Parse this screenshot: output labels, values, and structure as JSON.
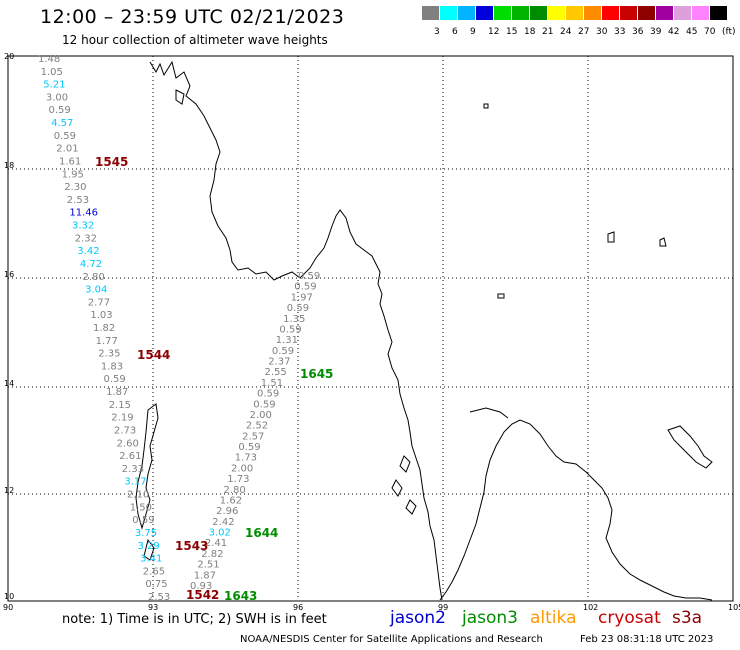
{
  "title": "12:00 – 23:59 UTC 02/21/2023",
  "subtitle": "12 hour collection of altimeter wave heights",
  "colorbar": {
    "labels": [
      "3",
      "6",
      "9",
      "12",
      "15",
      "18",
      "21",
      "24",
      "27",
      "30",
      "33",
      "36",
      "39",
      "42",
      "45",
      "70",
      "(ft)"
    ],
    "colors": [
      "#808080",
      "#00ffff",
      "#00b4ff",
      "#0000dd",
      "#00dd00",
      "#00b400",
      "#008c00",
      "#ffff00",
      "#ffc800",
      "#ff8c00",
      "#ff0000",
      "#c80000",
      "#8c0000",
      "#a000a0",
      "#dda0dd",
      "#ff82ff",
      "#000000"
    ]
  },
  "lat_labels": [
    "20",
    "18",
    "16",
    "14",
    "12",
    "10"
  ],
  "lon_labels": [
    "90",
    "93",
    "96",
    "99",
    "102",
    "105"
  ],
  "tracks": {
    "t1545": {
      "color": "#808080",
      "points": [
        {
          "v": "1.48",
          "c": "#808080"
        },
        {
          "v": "1.05",
          "c": "#808080"
        },
        {
          "v": "5.21",
          "c": "#00c8ff"
        },
        {
          "v": "3.00",
          "c": "#808080"
        },
        {
          "v": "0.59",
          "c": "#808080"
        },
        {
          "v": "4.57",
          "c": "#00c8ff"
        },
        {
          "v": "0.59",
          "c": "#808080"
        },
        {
          "v": "2.01",
          "c": "#808080"
        },
        {
          "v": "1.61",
          "c": "#808080"
        },
        {
          "v": "1.95",
          "c": "#808080"
        },
        {
          "v": "2.30",
          "c": "#808080"
        },
        {
          "v": "2.53",
          "c": "#808080"
        },
        {
          "v": "11.46",
          "c": "#0000cc"
        },
        {
          "v": "3.32",
          "c": "#00c8ff"
        },
        {
          "v": "2.32",
          "c": "#808080"
        },
        {
          "v": "3.42",
          "c": "#00c8ff"
        },
        {
          "v": "4.72",
          "c": "#00c8ff"
        },
        {
          "v": "2.80",
          "c": "#808080"
        },
        {
          "v": "3.04",
          "c": "#00c8ff"
        },
        {
          "v": "2.77",
          "c": "#808080"
        },
        {
          "v": "1.03",
          "c": "#808080"
        },
        {
          "v": "1.82",
          "c": "#808080"
        },
        {
          "v": "1.77",
          "c": "#808080"
        },
        {
          "v": "2.35",
          "c": "#808080"
        },
        {
          "v": "1.83",
          "c": "#808080"
        },
        {
          "v": "0.59",
          "c": "#808080"
        },
        {
          "v": "1.87",
          "c": "#808080"
        },
        {
          "v": "2.15",
          "c": "#808080"
        },
        {
          "v": "2.19",
          "c": "#808080"
        },
        {
          "v": "2.73",
          "c": "#808080"
        },
        {
          "v": "2.60",
          "c": "#808080"
        },
        {
          "v": "2.61",
          "c": "#808080"
        },
        {
          "v": "2.33",
          "c": "#808080"
        },
        {
          "v": "3.17",
          "c": "#00c8ff"
        },
        {
          "v": "2.10",
          "c": "#808080"
        },
        {
          "v": "1.50",
          "c": "#808080"
        },
        {
          "v": "0.59",
          "c": "#808080"
        },
        {
          "v": "3.75",
          "c": "#00c8ff"
        },
        {
          "v": "3.29",
          "c": "#00c8ff"
        },
        {
          "v": "3.41",
          "c": "#00c8ff"
        },
        {
          "v": "2.65",
          "c": "#808080"
        },
        {
          "v": "0.75",
          "c": "#808080"
        },
        {
          "v": "2.53",
          "c": "#808080"
        }
      ]
    },
    "t1645": {
      "points": [
        {
          "v": "0.59",
          "c": "#808080"
        },
        {
          "v": "0.59",
          "c": "#808080"
        },
        {
          "v": "1.97",
          "c": "#808080"
        },
        {
          "v": "0.59",
          "c": "#808080"
        },
        {
          "v": "1.35",
          "c": "#808080"
        },
        {
          "v": "0.59",
          "c": "#808080"
        },
        {
          "v": "1.31",
          "c": "#808080"
        },
        {
          "v": "0.59",
          "c": "#808080"
        },
        {
          "v": "2.37",
          "c": "#808080"
        },
        {
          "v": "2.55",
          "c": "#808080"
        },
        {
          "v": "1.51",
          "c": "#808080"
        },
        {
          "v": "0.59",
          "c": "#808080"
        },
        {
          "v": "0.59",
          "c": "#808080"
        },
        {
          "v": "2.00",
          "c": "#808080"
        },
        {
          "v": "2.52",
          "c": "#808080"
        },
        {
          "v": "2.57",
          "c": "#808080"
        },
        {
          "v": "0.59",
          "c": "#808080"
        },
        {
          "v": "1.73",
          "c": "#808080"
        },
        {
          "v": "2.00",
          "c": "#808080"
        },
        {
          "v": "1.73",
          "c": "#808080"
        },
        {
          "v": "2.80",
          "c": "#808080"
        },
        {
          "v": "1.62",
          "c": "#808080"
        },
        {
          "v": "2.96",
          "c": "#808080"
        },
        {
          "v": "2.42",
          "c": "#808080"
        },
        {
          "v": "3.02",
          "c": "#00c8ff"
        },
        {
          "v": "2.41",
          "c": "#808080"
        },
        {
          "v": "2.82",
          "c": "#808080"
        },
        {
          "v": "2.51",
          "c": "#808080"
        },
        {
          "v": "1.87",
          "c": "#808080"
        },
        {
          "v": "0.93",
          "c": "#808080"
        }
      ]
    }
  },
  "pass_labels": [
    {
      "text": "1545",
      "color": "#8b0000"
    },
    {
      "text": "1544",
      "color": "#8b0000"
    },
    {
      "text": "1645",
      "color": "#008c00"
    },
    {
      "text": "1644",
      "color": "#008c00"
    },
    {
      "text": "1543",
      "color": "#8b0000"
    },
    {
      "text": "1542",
      "color": "#8b0000"
    },
    {
      "text": "1643",
      "color": "#008c00"
    }
  ],
  "note": "note:  1) Time is in UTC;  2) SWH is in feet",
  "satellites": [
    {
      "name": "jason2",
      "color": "#0000cc"
    },
    {
      "name": "jason3",
      "color": "#008c00"
    },
    {
      "name": "altika",
      "color": "#ff9900"
    },
    {
      "name": "cryosat",
      "color": "#cc0000"
    },
    {
      "name": "s3a",
      "color": "#8b0000"
    }
  ],
  "credit": "NOAA/NESDIS Center for Satellite Applications and Research",
  "timestamp": "Feb 23 08:31:18 UTC 2023"
}
